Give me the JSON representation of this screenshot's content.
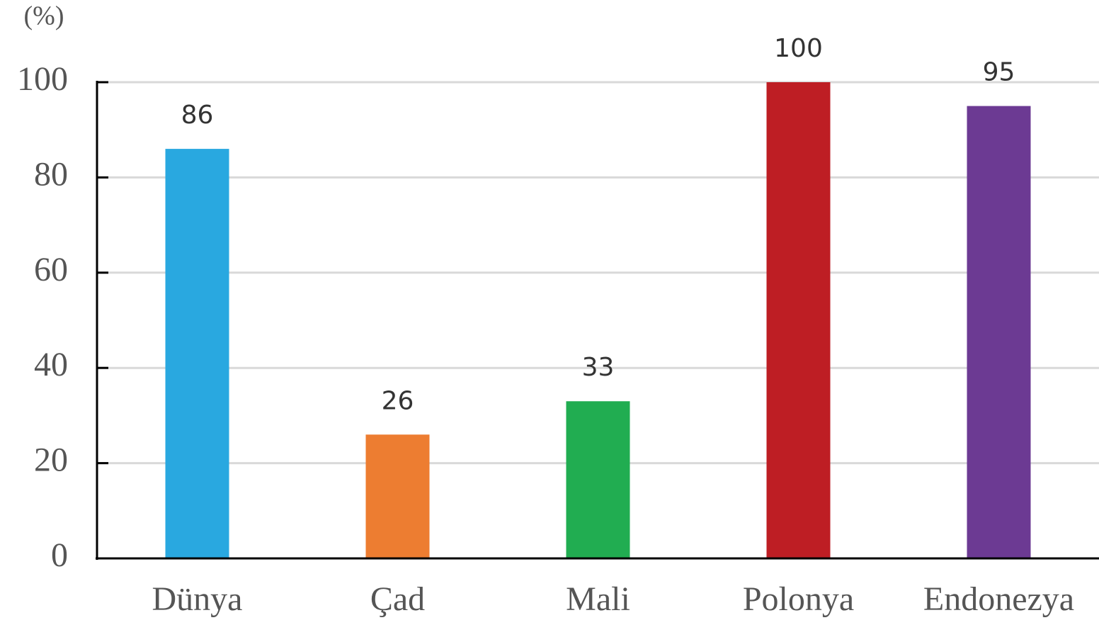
{
  "chart_data": {
    "type": "bar",
    "y_label": "(%)",
    "categories": [
      "Dünya",
      "Çad",
      "Mali",
      "Polonya",
      "Endonezya"
    ],
    "values": [
      86,
      26,
      33,
      100,
      95
    ],
    "colors": [
      "#29a8e0",
      "#ed7d31",
      "#21ad51",
      "#be1e24",
      "#6c3a93"
    ],
    "ylim": [
      0,
      100
    ],
    "yticks": [
      0,
      20,
      40,
      60,
      80,
      100
    ],
    "grid": true
  }
}
